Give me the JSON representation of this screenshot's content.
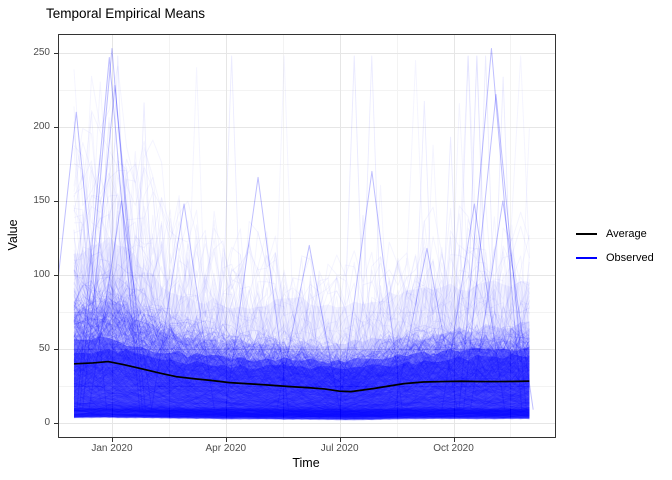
{
  "chart_data": {
    "type": "line",
    "title": "Temporal Empirical Means",
    "xlabel": "Time",
    "ylabel": "Value",
    "x_axis": {
      "unit": "months since 2019-12-01",
      "range_months": [
        0,
        12
      ],
      "ticks": [
        {
          "month": 1,
          "label": "Jan 2020"
        },
        {
          "month": 4,
          "label": "Apr 2020"
        },
        {
          "month": 7,
          "label": "Jul 2020"
        },
        {
          "month": 10,
          "label": "Oct 2020"
        }
      ],
      "minor_ticks_months": [
        2.5,
        5.5,
        8.5,
        11.5
      ]
    },
    "y_axis": {
      "range": [
        0,
        253
      ],
      "ticks": [
        {
          "value": 0,
          "label": "0"
        },
        {
          "value": 50,
          "label": "50"
        },
        {
          "value": 100,
          "label": "100"
        },
        {
          "value": 150,
          "label": "150"
        },
        {
          "value": 200,
          "label": "200"
        },
        {
          "value": 250,
          "label": "250"
        }
      ],
      "minor_ticks": [
        25,
        75,
        125,
        175,
        225
      ]
    },
    "series": [
      {
        "name": "Average",
        "color": "#000000",
        "points": [
          [
            0,
            40
          ],
          [
            0.5,
            40.6
          ],
          [
            0.9,
            41.5
          ],
          [
            1.3,
            39.5
          ],
          [
            1.8,
            36.5
          ],
          [
            2.3,
            33.5
          ],
          [
            2.7,
            31.3
          ],
          [
            3.2,
            29.8
          ],
          [
            3.6,
            28.8
          ],
          [
            4.1,
            27.3
          ],
          [
            4.8,
            26.2
          ],
          [
            5.2,
            25.5
          ],
          [
            5.7,
            24.6
          ],
          [
            6.2,
            23.8
          ],
          [
            6.6,
            23
          ],
          [
            7.0,
            21.5
          ],
          [
            7.3,
            21.2
          ],
          [
            7.9,
            23.3
          ],
          [
            8.3,
            25.0
          ],
          [
            8.7,
            26.6
          ],
          [
            9.2,
            27.7
          ],
          [
            9.7,
            28.0
          ],
          [
            10.2,
            28.2
          ],
          [
            10.7,
            28.0
          ],
          [
            11.2,
            28.0
          ],
          [
            11.7,
            28.1
          ],
          [
            12,
            28.3
          ]
        ]
      }
    ],
    "observed": {
      "name": "Observed",
      "color": "#0000ff",
      "approx_n_series": 1500,
      "points_per_series": 53,
      "seed": 20,
      "months_grid": [
        0,
        1,
        2,
        3,
        4,
        5,
        6,
        7,
        8,
        9,
        10,
        11,
        12
      ],
      "bands": [
        {
          "name": "q01_q99",
          "opacity": 0.05,
          "upper": [
            112,
            128,
            98,
            85,
            80,
            80,
            82,
            80,
            85,
            88,
            92,
            96,
            96
          ],
          "lower": [
            3,
            3,
            3,
            2.5,
            2.5,
            2.5,
            2.5,
            2.5,
            2.5,
            3,
            3,
            3,
            3
          ]
        },
        {
          "name": "q05_q95",
          "opacity": 0.1,
          "upper": [
            75,
            85,
            66,
            58,
            55,
            54,
            54,
            53,
            56,
            58,
            62,
            66,
            66
          ],
          "lower": [
            5,
            5,
            4,
            3.5,
            3,
            3,
            3,
            3,
            3,
            3.5,
            4,
            4,
            4
          ]
        },
        {
          "name": "q10_q90",
          "opacity": 0.4,
          "upper": [
            55,
            57,
            50,
            46,
            44,
            43,
            43,
            42,
            44,
            46,
            48,
            50,
            50
          ],
          "lower": [
            7,
            7,
            6,
            5,
            4,
            4,
            4,
            4,
            4,
            4.5,
            5,
            5,
            5
          ]
        },
        {
          "name": "core",
          "opacity": 0.4,
          "upper": [
            48,
            50,
            44,
            41,
            39,
            38,
            38,
            37,
            39,
            41,
            43,
            45,
            45
          ],
          "lower": [
            8.5,
            8.5,
            7,
            6,
            5,
            5,
            5,
            5,
            5,
            5.5,
            6,
            6,
            6
          ]
        }
      ],
      "notable_spikes": [
        {
          "m": 0.06,
          "value": 210
        },
        {
          "m": 0.93,
          "value": 247
        },
        {
          "m": 1.0,
          "value": 253
        },
        {
          "m": 1.08,
          "value": 228
        },
        {
          "m": 1.25,
          "value": 150
        },
        {
          "m": 2.9,
          "value": 148
        },
        {
          "m": 4.85,
          "value": 166
        },
        {
          "m": 6.2,
          "value": 120
        },
        {
          "m": 7.85,
          "value": 170
        },
        {
          "m": 9.3,
          "value": 118
        },
        {
          "m": 10.55,
          "value": 148
        },
        {
          "m": 11.0,
          "value": 253
        },
        {
          "m": 11.12,
          "value": 222
        },
        {
          "m": 11.3,
          "value": 150
        }
      ]
    },
    "legend": {
      "position": "right",
      "items": [
        {
          "label": "Average",
          "color": "#000000"
        },
        {
          "label": "Observed",
          "color": "#0000ff"
        }
      ]
    },
    "style": {
      "background": "#ffffff",
      "grid_major": "#e6e6e6",
      "grid_minor": "#f3f3f3",
      "panel_border": "#333333",
      "tick_color": "#333333",
      "tick_label_color": "#4d4d4d",
      "title_color": "#000000"
    }
  }
}
